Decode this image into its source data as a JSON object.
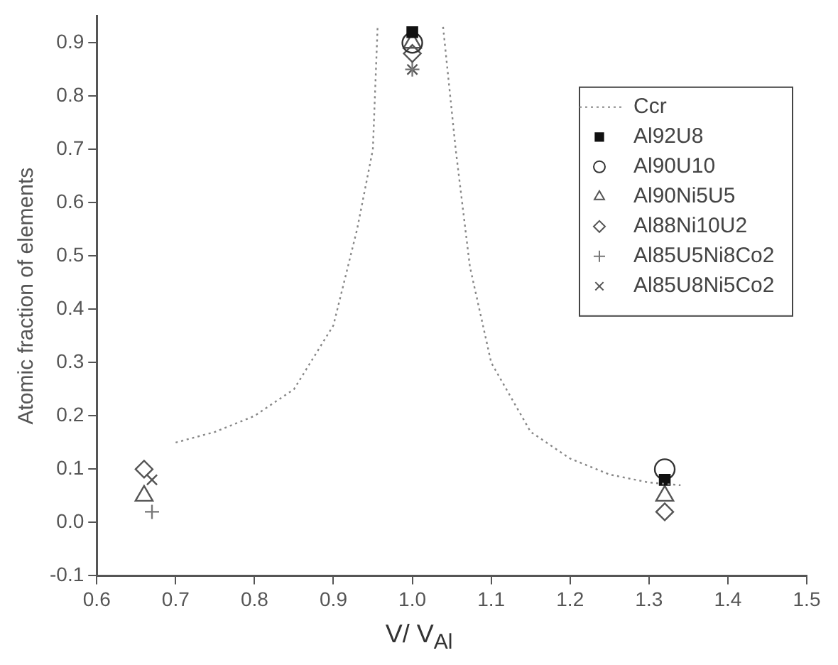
{
  "chart_data": {
    "type": "scatter",
    "xlabel": "V/ V$_{Al}$",
    "ylabel": "Atomic fraction of elements",
    "xlim": [
      0.6,
      1.5
    ],
    "ylim": [
      -0.1,
      0.95
    ],
    "xticks": [
      {
        "value": 0.6,
        "label": "0.6"
      },
      {
        "value": 0.7,
        "label": "0.7"
      },
      {
        "value": 0.8,
        "label": "0.8"
      },
      {
        "value": 0.9,
        "label": "0.9"
      },
      {
        "value": 1.0,
        "label": "1.0"
      },
      {
        "value": 1.1,
        "label": "1.1"
      },
      {
        "value": 1.2,
        "label": "1.2"
      },
      {
        "value": 1.3,
        "label": "1.3"
      },
      {
        "value": 1.4,
        "label": "1.4"
      },
      {
        "value": 1.5,
        "label": "1.5"
      }
    ],
    "yticks": [
      {
        "value": -0.1,
        "label": "-0.1"
      },
      {
        "value": 0,
        "label": "0.0"
      },
      {
        "value": 0.1,
        "label": "0.1"
      },
      {
        "value": 0.2,
        "label": "0.2"
      },
      {
        "value": 0.3,
        "label": "0.3"
      },
      {
        "value": 0.4,
        "label": "0.4"
      },
      {
        "value": 0.5,
        "label": "0.5"
      },
      {
        "value": 0.6,
        "label": "0.6"
      },
      {
        "value": 0.7,
        "label": "0.7"
      },
      {
        "value": 0.8,
        "label": "0.8"
      },
      {
        "value": 0.9,
        "label": "0.9"
      }
    ],
    "grid": false,
    "legend": "top right",
    "series": [
      {
        "name": "Ccr",
        "type": "line",
        "line_style": "dotted",
        "marker": "none",
        "color": "#888888",
        "x": [
          0.7,
          0.75,
          0.8,
          0.85,
          0.9,
          0.93,
          0.95,
          0.956,
          1.0,
          1.039,
          1.055,
          1.073,
          1.1,
          1.15,
          1.2,
          1.25,
          1.3,
          1.34
        ],
        "values": [
          0.15,
          0.17,
          0.2,
          0.25,
          0.37,
          0.55,
          0.7,
          0.93,
          null,
          0.93,
          0.7,
          0.48,
          0.3,
          0.17,
          0.12,
          0.09,
          0.075,
          0.07
        ]
      },
      {
        "name": "Al92U8",
        "marker": "square",
        "color": "#111111",
        "x": [
          1.0,
          1.32
        ],
        "values": [
          0.92,
          0.08
        ]
      },
      {
        "name": "Al90U10",
        "marker": "circle",
        "color": "#333333",
        "x": [
          1.0,
          1.32
        ],
        "values": [
          0.9,
          0.1
        ]
      },
      {
        "name": "Al90Ni5U5",
        "marker": "triangle",
        "color": "#555555",
        "x": [
          0.66,
          1.0,
          1.32
        ],
        "values": [
          0.05,
          0.9,
          0.05
        ]
      },
      {
        "name": "Al88Ni10U2",
        "marker": "diamond",
        "color": "#555555",
        "x": [
          0.66,
          1.0,
          1.32
        ],
        "values": [
          0.1,
          0.88,
          0.02
        ]
      },
      {
        "name": "Al85U5Ni8Co2",
        "marker": "plus",
        "color": "#777777",
        "x": [
          0.67,
          1.0
        ],
        "values": [
          0.02,
          0.85
        ]
      },
      {
        "name": "Al85U8Ni5Co2",
        "marker": "cross",
        "color": "#555555",
        "x": [
          0.67,
          1.0
        ],
        "values": [
          0.08,
          0.85
        ]
      }
    ]
  }
}
